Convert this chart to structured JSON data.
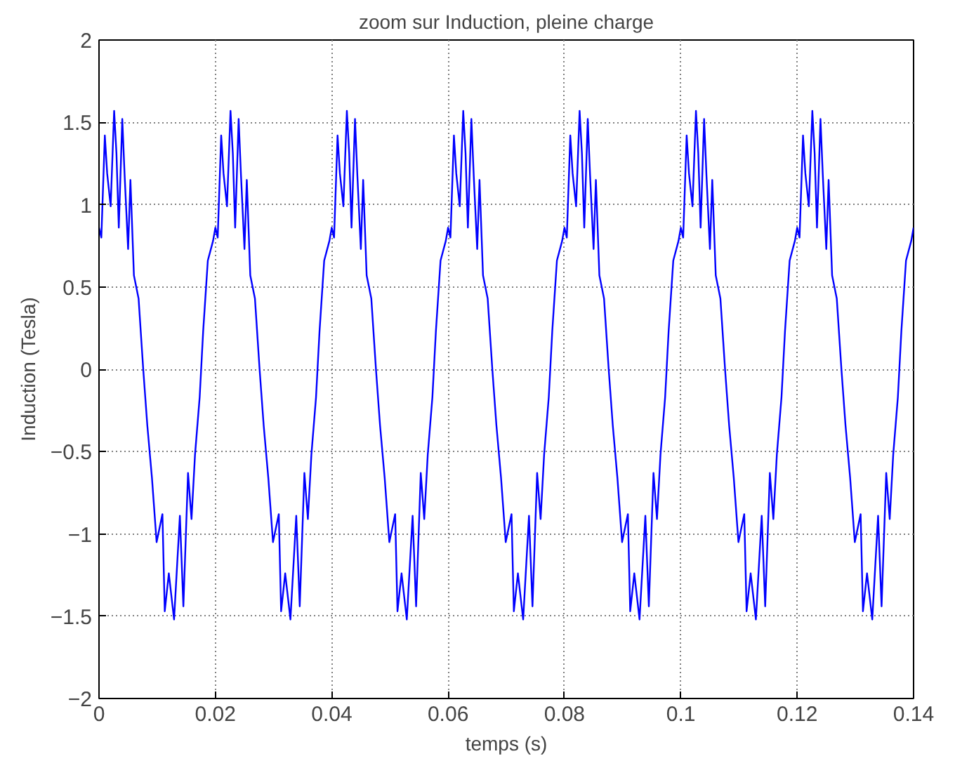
{
  "chart_data": {
    "type": "line",
    "title": "zoom sur Induction, pleine charge",
    "xlabel": "temps (s)",
    "ylabel": "Induction (Tesla)",
    "xlim": [
      0,
      0.14
    ],
    "ylim": [
      -2,
      2
    ],
    "xticks": [
      0,
      0.02,
      0.04,
      0.06,
      0.08,
      0.1,
      0.12,
      0.14
    ],
    "yticks": [
      -2,
      -1.5,
      -1,
      -0.5,
      0,
      0.5,
      1,
      1.5,
      2
    ],
    "grid": true,
    "line_style": "solid",
    "series": [
      {
        "color": "#0000ff",
        "x": [
          0,
          0.0004,
          0.001,
          0.0014,
          0.002,
          0.0026,
          0.003,
          0.0034,
          0.004,
          0.0044,
          0.005,
          0.0054,
          0.006,
          0.0068,
          0.0076,
          0.0083,
          0.0091,
          0.0099,
          0.0109,
          0.0113,
          0.012,
          0.0129,
          0.0139,
          0.0145,
          0.0153,
          0.0159,
          0.0165,
          0.0173,
          0.0179,
          0.0187,
          0.0196,
          0.02,
          0.0204,
          0.021,
          0.0214,
          0.022,
          0.0226,
          0.023,
          0.0234,
          0.024,
          0.0244,
          0.025,
          0.0254,
          0.026,
          0.0268,
          0.0276,
          0.0283,
          0.0291,
          0.0299,
          0.0309,
          0.0313,
          0.032,
          0.0329,
          0.0339,
          0.0345,
          0.0353,
          0.0359,
          0.0365,
          0.0373,
          0.0379,
          0.0387,
          0.0396,
          0.04,
          0.0404,
          0.041,
          0.0414,
          0.042,
          0.0426,
          0.043,
          0.0434,
          0.044,
          0.0444,
          0.045,
          0.0454,
          0.046,
          0.0468,
          0.0476,
          0.0483,
          0.0491,
          0.0499,
          0.0509,
          0.0513,
          0.052,
          0.0529,
          0.0539,
          0.0545,
          0.0553,
          0.0559,
          0.0565,
          0.0573,
          0.0579,
          0.0587,
          0.0596,
          0.06,
          0.0604,
          0.061,
          0.0614,
          0.062,
          0.0626,
          0.063,
          0.0634,
          0.064,
          0.0644,
          0.065,
          0.0654,
          0.066,
          0.0668,
          0.0676,
          0.0683,
          0.0691,
          0.0699,
          0.0709,
          0.0713,
          0.072,
          0.0729,
          0.0739,
          0.0745,
          0.0753,
          0.0759,
          0.0765,
          0.0773,
          0.0779,
          0.0787,
          0.0796,
          0.08,
          0.0804,
          0.081,
          0.0814,
          0.082,
          0.0826,
          0.083,
          0.0834,
          0.084,
          0.0844,
          0.085,
          0.0854,
          0.086,
          0.0868,
          0.0876,
          0.0883,
          0.0891,
          0.0899,
          0.0909,
          0.0913,
          0.092,
          0.0929,
          0.0939,
          0.0945,
          0.0953,
          0.0959,
          0.0965,
          0.0973,
          0.0979,
          0.0987,
          0.0996,
          0.1,
          0.1004,
          0.101,
          0.1014,
          0.102,
          0.1026,
          0.103,
          0.1034,
          0.104,
          0.1044,
          0.105,
          0.1054,
          0.106,
          0.1068,
          0.1076,
          0.1083,
          0.1091,
          0.1099,
          0.1109,
          0.1113,
          0.112,
          0.1129,
          0.1139,
          0.1145,
          0.1153,
          0.1159,
          0.1165,
          0.1173,
          0.1179,
          0.1187,
          0.1196,
          0.12,
          0.1204,
          0.121,
          0.1214,
          0.122,
          0.1226,
          0.123,
          0.1234,
          0.124,
          0.1244,
          0.125,
          0.1254,
          0.126,
          0.1268,
          0.1276,
          0.1283,
          0.1291,
          0.1299,
          0.1309,
          0.1313,
          0.132,
          0.1329,
          0.1339,
          0.1345,
          0.1353,
          0.1359,
          0.1365,
          0.1373,
          0.1379,
          0.1387,
          0.1396,
          0.14
        ],
        "values": [
          0.86,
          0.8,
          1.42,
          1.19,
          0.99,
          1.57,
          1.31,
          0.86,
          1.52,
          1.18,
          0.73,
          1.15,
          0.57,
          0.43,
          0,
          -0.34,
          -0.66,
          -1.05,
          -0.88,
          -1.47,
          -1.24,
          -1.52,
          -0.89,
          -1.44,
          -0.63,
          -0.91,
          -0.52,
          -0.17,
          0.23,
          0.66,
          0.78,
          0.86,
          0.8,
          1.42,
          1.19,
          0.99,
          1.57,
          1.31,
          0.86,
          1.52,
          1.18,
          0.73,
          1.15,
          0.57,
          0.43,
          0,
          -0.34,
          -0.66,
          -1.05,
          -0.88,
          -1.47,
          -1.24,
          -1.52,
          -0.89,
          -1.44,
          -0.63,
          -0.91,
          -0.52,
          -0.17,
          0.23,
          0.66,
          0.78,
          0.86,
          0.8,
          1.42,
          1.19,
          0.99,
          1.57,
          1.31,
          0.86,
          1.52,
          1.18,
          0.73,
          1.15,
          0.57,
          0.43,
          0,
          -0.34,
          -0.66,
          -1.05,
          -0.88,
          -1.47,
          -1.24,
          -1.52,
          -0.89,
          -1.44,
          -0.63,
          -0.91,
          -0.52,
          -0.17,
          0.23,
          0.66,
          0.78,
          0.86,
          0.8,
          1.42,
          1.19,
          0.99,
          1.57,
          1.31,
          0.86,
          1.52,
          1.18,
          0.73,
          1.15,
          0.57,
          0.43,
          0,
          -0.34,
          -0.66,
          -1.05,
          -0.88,
          -1.47,
          -1.24,
          -1.52,
          -0.89,
          -1.44,
          -0.63,
          -0.91,
          -0.52,
          -0.17,
          0.23,
          0.66,
          0.78,
          0.86,
          0.8,
          1.42,
          1.19,
          0.99,
          1.57,
          1.31,
          0.86,
          1.52,
          1.18,
          0.73,
          1.15,
          0.57,
          0.43,
          0,
          -0.34,
          -0.66,
          -1.05,
          -0.88,
          -1.47,
          -1.24,
          -1.52,
          -0.89,
          -1.44,
          -0.63,
          -0.91,
          -0.52,
          -0.17,
          0.23,
          0.66,
          0.78,
          0.86,
          0.8,
          1.42,
          1.19,
          0.99,
          1.57,
          1.31,
          0.86,
          1.52,
          1.18,
          0.73,
          1.15,
          0.57,
          0.43,
          0,
          -0.34,
          -0.66,
          -1.05,
          -0.88,
          -1.47,
          -1.24,
          -1.52,
          -0.89,
          -1.44,
          -0.63,
          -0.91,
          -0.52,
          -0.17,
          0.23,
          0.66,
          0.78,
          0.86,
          0.8,
          1.42,
          1.19,
          0.99,
          1.57,
          1.31,
          0.86,
          1.52,
          1.18,
          0.73,
          1.15,
          0.57,
          0.43,
          0,
          -0.34,
          -0.66,
          -1.05,
          -0.88,
          -1.47,
          -1.24,
          -1.52,
          -0.89,
          -1.44,
          -0.63,
          -0.91,
          -0.52,
          -0.17,
          0.23,
          0.66,
          0.78,
          0.86
        ]
      }
    ]
  }
}
